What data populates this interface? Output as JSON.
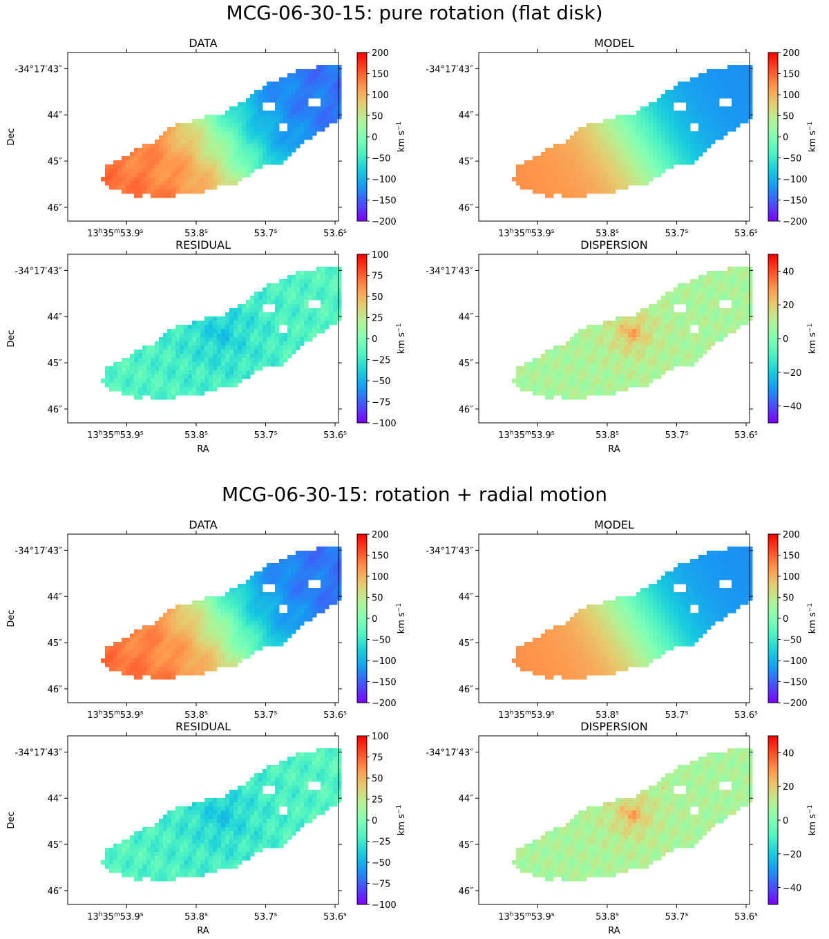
{
  "figure": {
    "sections": [
      {
        "title": "MCG-06-30-15: pure rotation (flat disk)"
      },
      {
        "title": "MCG-06-30-15: rotation + radial motion"
      }
    ]
  },
  "colormap": {
    "name": "rainbow",
    "stops": [
      "#8000ff",
      "#4a4dfb",
      "#1996f3",
      "#17cbde",
      "#4cf2c3",
      "#80ffb4",
      "#b3f295",
      "#e6cb6f",
      "#ff964c",
      "#ff4d26",
      "#ff0000"
    ]
  },
  "axes": {
    "ra_label": "RA",
    "dec_label": "Dec",
    "ra_ticks": [
      {
        "value": 53.9,
        "label": "53.9",
        "prefix": "13h35m"
      },
      {
        "value": 53.8,
        "label": "53.8"
      },
      {
        "value": 53.7,
        "label": "53.7"
      },
      {
        "value": 53.6,
        "label": "53.6"
      }
    ],
    "dec_ticks": [
      {
        "value": 43,
        "label": "-34°17′43″"
      },
      {
        "value": 44,
        "label": "44″"
      },
      {
        "value": 45,
        "label": "45″"
      },
      {
        "value": 46,
        "label": "46″"
      }
    ],
    "ra_range": [
      53.985,
      53.595
    ],
    "dec_range": [
      42.65,
      46.3
    ],
    "cbar_unit": "km s",
    "cbar_exp": "−1"
  },
  "chart_data": [
    {
      "type": "heatmap",
      "section": 0,
      "title": "DATA",
      "kind": "velocity",
      "vmin": -200,
      "vmax": 200,
      "cbar_ticks": [
        "200",
        "150",
        "100",
        "50",
        "0",
        "−50",
        "−100",
        "−150",
        "−200"
      ],
      "show_dec_label": true,
      "show_ra_label": false
    },
    {
      "type": "heatmap",
      "section": 0,
      "title": "MODEL",
      "kind": "model",
      "vmin": -200,
      "vmax": 200,
      "cbar_ticks": [
        "200",
        "150",
        "100",
        "50",
        "0",
        "−50",
        "−100",
        "−150",
        "−200"
      ],
      "show_dec_label": false,
      "show_ra_label": false
    },
    {
      "type": "heatmap",
      "section": 0,
      "title": "RESIDUAL",
      "kind": "residual",
      "vmin": -100,
      "vmax": 100,
      "cbar_ticks": [
        "100",
        "75",
        "50",
        "25",
        "0",
        "−25",
        "−50",
        "−75",
        "−100"
      ],
      "show_dec_label": true,
      "show_ra_label": true
    },
    {
      "type": "heatmap",
      "section": 0,
      "title": "DISPERSION",
      "kind": "dispersion",
      "vmin": -50,
      "vmax": 50,
      "cbar_ticks": [
        "40",
        "20",
        "0",
        "−20",
        "−40"
      ],
      "cbar_tick_values": [
        40,
        20,
        0,
        -20,
        -40
      ],
      "show_dec_label": false,
      "show_ra_label": true
    },
    {
      "type": "heatmap",
      "section": 1,
      "title": "DATA",
      "kind": "velocity",
      "vmin": -200,
      "vmax": 200,
      "cbar_ticks": [
        "200",
        "150",
        "100",
        "50",
        "0",
        "−50",
        "−100",
        "−150",
        "−200"
      ],
      "show_dec_label": true,
      "show_ra_label": false
    },
    {
      "type": "heatmap",
      "section": 1,
      "title": "MODEL",
      "kind": "model",
      "vmin": -200,
      "vmax": 200,
      "cbar_ticks": [
        "200",
        "150",
        "100",
        "50",
        "0",
        "−50",
        "−100",
        "−150",
        "−200"
      ],
      "show_dec_label": false,
      "show_ra_label": false
    },
    {
      "type": "heatmap",
      "section": 1,
      "title": "RESIDUAL",
      "kind": "residual",
      "vmin": -100,
      "vmax": 100,
      "cbar_ticks": [
        "100",
        "75",
        "50",
        "25",
        "0",
        "−25",
        "−50",
        "−75",
        "−100"
      ],
      "show_dec_label": true,
      "show_ra_label": true
    },
    {
      "type": "heatmap",
      "section": 1,
      "title": "DISPERSION",
      "kind": "dispersion",
      "vmin": -50,
      "vmax": 50,
      "cbar_ticks": [
        "40",
        "20",
        "0",
        "−20",
        "−40"
      ],
      "cbar_tick_values": [
        40,
        20,
        0,
        -20,
        -40
      ],
      "show_dec_label": false,
      "show_ra_label": true
    }
  ]
}
